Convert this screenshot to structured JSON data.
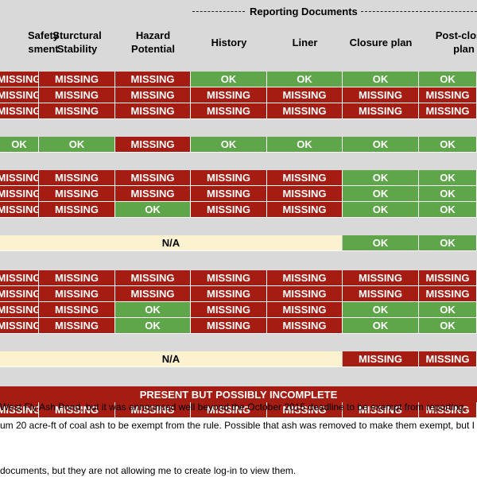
{
  "section_title": "Reporting Documents",
  "columns": [
    {
      "label": "Safety\nsment"
    },
    {
      "label": "Sturctural\nStability"
    },
    {
      "label": "Hazard\nPotential"
    },
    {
      "label": "History"
    },
    {
      "label": "Liner"
    },
    {
      "label": "Closure plan"
    },
    {
      "label": "Post-closur\nplan"
    }
  ],
  "groups": [
    {
      "rows": [
        [
          "MISSING",
          "MISSING",
          "MISSING",
          "OK",
          "OK",
          "OK",
          "OK"
        ],
        [
          "MISSING",
          "MISSING",
          "MISSING",
          "MISSING",
          "MISSING",
          "MISSING",
          "MISSING"
        ],
        [
          "MISSING",
          "MISSING",
          "MISSING",
          "MISSING",
          "MISSING",
          "MISSING",
          "MISSING"
        ]
      ]
    },
    {
      "rows": [
        [
          "OK",
          "OK",
          "MISSING",
          "OK",
          "OK",
          "OK",
          "OK"
        ]
      ]
    },
    {
      "rows": [
        [
          "MISSING",
          "MISSING",
          "MISSING",
          "MISSING",
          "MISSING",
          "OK",
          "OK"
        ],
        [
          "MISSING",
          "MISSING",
          "MISSING",
          "MISSING",
          "MISSING",
          "OK",
          "OK"
        ],
        [
          "MISSING",
          "MISSING",
          "OK",
          "MISSING",
          "MISSING",
          "OK",
          "OK"
        ]
      ]
    },
    {
      "rows": [
        {
          "na_span": 5,
          "na_text": "N/A",
          "rest": [
            "OK",
            "OK"
          ]
        }
      ]
    },
    {
      "rows": [
        [
          "MISSING",
          "MISSING",
          "MISSING",
          "MISSING",
          "MISSING",
          "MISSING",
          "MISSING"
        ],
        [
          "MISSING",
          "MISSING",
          "MISSING",
          "MISSING",
          "MISSING",
          "MISSING",
          "MISSING"
        ],
        [
          "MISSING",
          "MISSING",
          "OK",
          "MISSING",
          "MISSING",
          "OK",
          "OK"
        ],
        [
          "MISSING",
          "MISSING",
          "OK",
          "MISSING",
          "MISSING",
          "OK",
          "OK"
        ]
      ]
    },
    {
      "rows": [
        {
          "na_span": 5,
          "na_text": "N/A",
          "rest": [
            "MISSING",
            "MISSING"
          ]
        }
      ]
    },
    {
      "banner": "PRESENT BUT POSSIBLY INCOMPLETE",
      "rows": [
        [
          "MISSING",
          "MISSING",
          "MISSING",
          "MISSING",
          "MISSING",
          "MISSING",
          "MISSING"
        ]
      ]
    }
  ],
  "notes": [
    "West Fly Ash Pond, but it was announced well beyond the October 2015 deadline to be exempt from reporting.",
    "um 20 acre-ft of coal ash to be exempt from the rule. Possible that ash was removed to make them exempt, but I",
    "",
    "documents, but they are not allowing me to create log-in to view them."
  ],
  "colors": {
    "missing": "#a51d12",
    "ok": "#5fa64a",
    "na": "#fdf2cf",
    "header_bg": "#d9d9d9"
  }
}
